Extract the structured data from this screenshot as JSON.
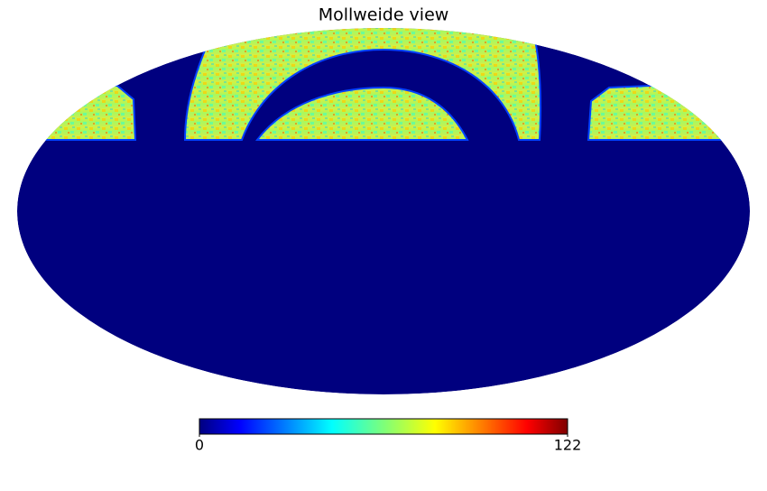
{
  "chart_data": {
    "type": "mollweide",
    "title": "Mollweide view",
    "clim": [
      0,
      122
    ],
    "cticks": [
      0,
      122
    ]
  }
}
